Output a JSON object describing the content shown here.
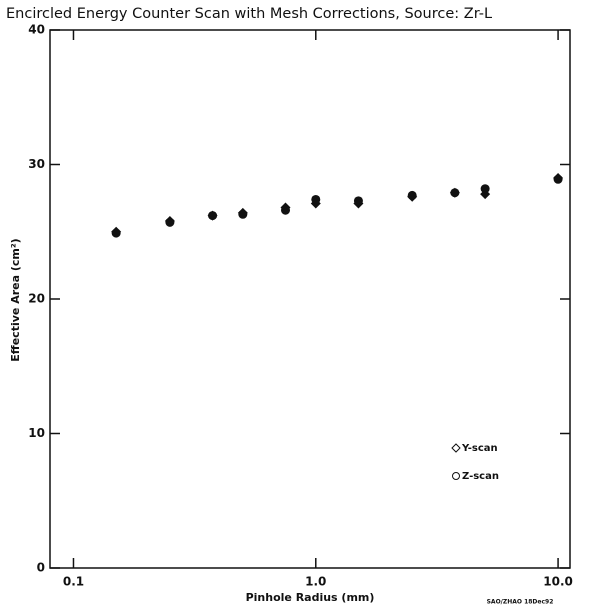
{
  "chart_data": {
    "type": "scatter",
    "title": "Encircled Energy Counter Scan with Mesh Corrections,  Source: Zr-L",
    "xlabel": "Pinhole Radius (mm)",
    "ylabel": "Effective Area  (cm²)",
    "annotation": "SAO/ZHAO 18Dec92",
    "xscale": "log",
    "xlim": [
      0.08,
      11.2
    ],
    "xticks": [
      0.1,
      {
        "value": 1,
        "label": "1.0"
      },
      {
        "value": 10,
        "label": "10.0"
      }
    ],
    "ylim": [
      0,
      40
    ],
    "yticks": [
      0,
      10,
      20,
      30,
      40
    ],
    "legend": "lower right",
    "x": [
      0.15,
      0.25,
      0.375,
      0.5,
      0.75,
      1.0,
      1.5,
      2.5,
      3.75,
      5.0,
      10.0
    ],
    "series": [
      {
        "name": "Y-scan",
        "color": "#111111",
        "marker": "diamond",
        "values": [
          25.0,
          25.8,
          26.2,
          26.4,
          26.8,
          27.1,
          27.1,
          27.6,
          27.9,
          27.8,
          29.0
        ]
      },
      {
        "name": "Z-scan",
        "color": "#111111",
        "marker": "circle",
        "values": [
          24.9,
          25.7,
          26.2,
          26.3,
          26.6,
          27.4,
          27.3,
          27.7,
          27.9,
          28.2,
          28.9
        ]
      }
    ]
  }
}
